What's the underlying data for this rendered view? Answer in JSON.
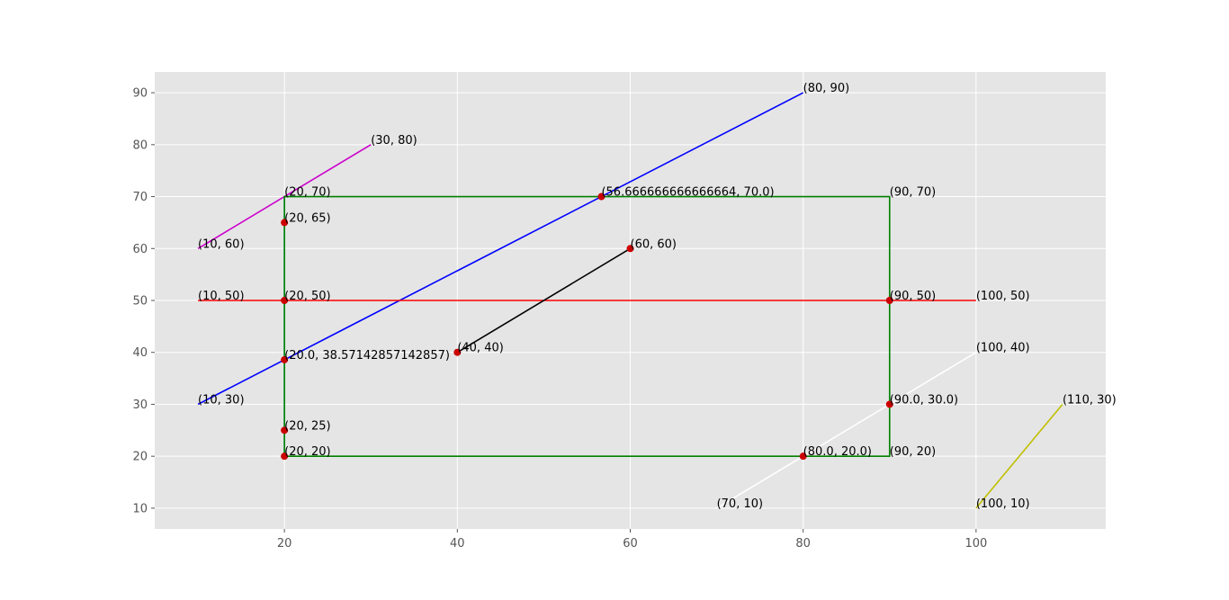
{
  "chart_data": {
    "type": "line",
    "title": "",
    "xlabel": "",
    "ylabel": "",
    "xlim": [
      5,
      115
    ],
    "ylim": [
      6,
      94
    ],
    "xticks": [
      20,
      40,
      60,
      80,
      100
    ],
    "yticks": [
      10,
      20,
      30,
      40,
      50,
      60,
      70,
      80,
      90
    ],
    "grid": true,
    "background": "#e5e5e5",
    "grid_color": "#ffffff",
    "point_color": "#cc0000",
    "segments": [
      {
        "color": "#0000ff",
        "points": [
          [
            10,
            30
          ],
          [
            80,
            90
          ]
        ]
      },
      {
        "color": "#cc00cc",
        "points": [
          [
            10,
            60
          ],
          [
            30,
            80
          ]
        ]
      },
      {
        "color": "#00cccc",
        "points": [
          [
            20,
            20
          ],
          [
            20,
            70
          ]
        ]
      },
      {
        "color": "#ff0000",
        "points": [
          [
            10,
            50
          ],
          [
            100,
            50
          ]
        ]
      },
      {
        "color": "#000000",
        "points": [
          [
            40,
            40
          ],
          [
            60,
            60
          ]
        ]
      },
      {
        "color": "#ffffff",
        "points": [
          [
            70,
            10
          ],
          [
            100,
            40
          ]
        ]
      },
      {
        "color": "#bfbf00",
        "points": [
          [
            100,
            10
          ],
          [
            110,
            30
          ]
        ]
      },
      {
        "color": "#008000",
        "points": [
          [
            20,
            20
          ],
          [
            90,
            20
          ],
          [
            90,
            70
          ],
          [
            20,
            70
          ],
          [
            20,
            20
          ]
        ]
      }
    ],
    "intersections": [
      [
        20,
        65
      ],
      [
        20,
        50
      ],
      [
        20,
        38.57142857142857
      ],
      [
        20,
        25
      ],
      [
        20,
        20
      ],
      [
        56.666666666666664,
        70
      ],
      [
        60,
        60
      ],
      [
        40,
        40
      ],
      [
        90,
        50
      ],
      [
        90,
        30
      ],
      [
        80,
        20
      ]
    ],
    "annotations": [
      {
        "x": 80,
        "y": 90,
        "text": "(80, 90)"
      },
      {
        "x": 30,
        "y": 80,
        "text": "(30, 80)"
      },
      {
        "x": 20,
        "y": 70,
        "text": "(20, 70)"
      },
      {
        "x": 56.666666666666664,
        "y": 70,
        "text": "(56.666666666666664, 70.0)"
      },
      {
        "x": 90,
        "y": 70,
        "text": "(90, 70)"
      },
      {
        "x": 20,
        "y": 65,
        "text": "(20, 65)"
      },
      {
        "x": 10,
        "y": 60,
        "text": "(10, 60)"
      },
      {
        "x": 60,
        "y": 60,
        "text": "(60, 60)"
      },
      {
        "x": 10,
        "y": 50,
        "text": "(10, 50)"
      },
      {
        "x": 20,
        "y": 50,
        "text": "(20, 50)"
      },
      {
        "x": 90,
        "y": 50,
        "text": "(90, 50)"
      },
      {
        "x": 100,
        "y": 50,
        "text": "(100, 50)"
      },
      {
        "x": 40,
        "y": 40,
        "text": "(40, 40)"
      },
      {
        "x": 100,
        "y": 40,
        "text": "(100, 40)"
      },
      {
        "x": 20,
        "y": 38.57142857142857,
        "text": "(20.0, 38.57142857142857)"
      },
      {
        "x": 10,
        "y": 30,
        "text": "(10, 30)"
      },
      {
        "x": 90,
        "y": 30,
        "text": "(90.0, 30.0)"
      },
      {
        "x": 110,
        "y": 30,
        "text": "(110, 30)"
      },
      {
        "x": 20,
        "y": 25,
        "text": "(20, 25)"
      },
      {
        "x": 20,
        "y": 20,
        "text": "(20, 20)"
      },
      {
        "x": 80,
        "y": 20,
        "text": "(80.0, 20.0)"
      },
      {
        "x": 90,
        "y": 20,
        "text": "(90, 20)"
      },
      {
        "x": 70,
        "y": 10,
        "text": "(70, 10)"
      },
      {
        "x": 100,
        "y": 10,
        "text": "(100, 10)"
      }
    ]
  }
}
